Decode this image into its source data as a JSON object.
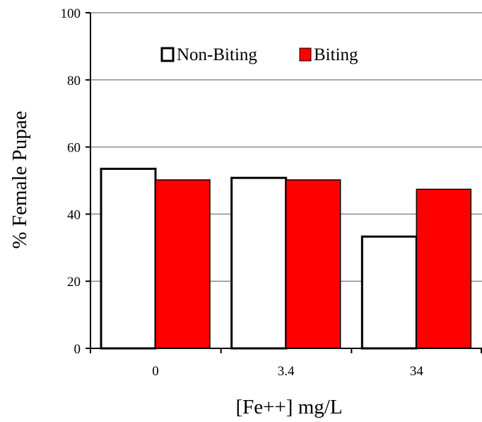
{
  "chart_data": {
    "type": "bar",
    "title": "",
    "xlabel": "[Fe++] mg/L",
    "ylabel": "% Female Pupae",
    "categories": [
      "0",
      "3.4",
      "34"
    ],
    "series": [
      {
        "name": "Non-Biting",
        "values": [
          53.5,
          50.8,
          33.3
        ],
        "color": "#ffffff",
        "stroke": "#000000"
      },
      {
        "name": "Biting",
        "values": [
          50.2,
          50.2,
          47.4
        ],
        "color": "#ff0000",
        "stroke": "#000000"
      }
    ],
    "ylim": [
      0,
      100
    ],
    "yticks": [
      "0",
      "20",
      "40",
      "60",
      "80",
      "100"
    ],
    "grid": true,
    "legend_position": "top"
  }
}
